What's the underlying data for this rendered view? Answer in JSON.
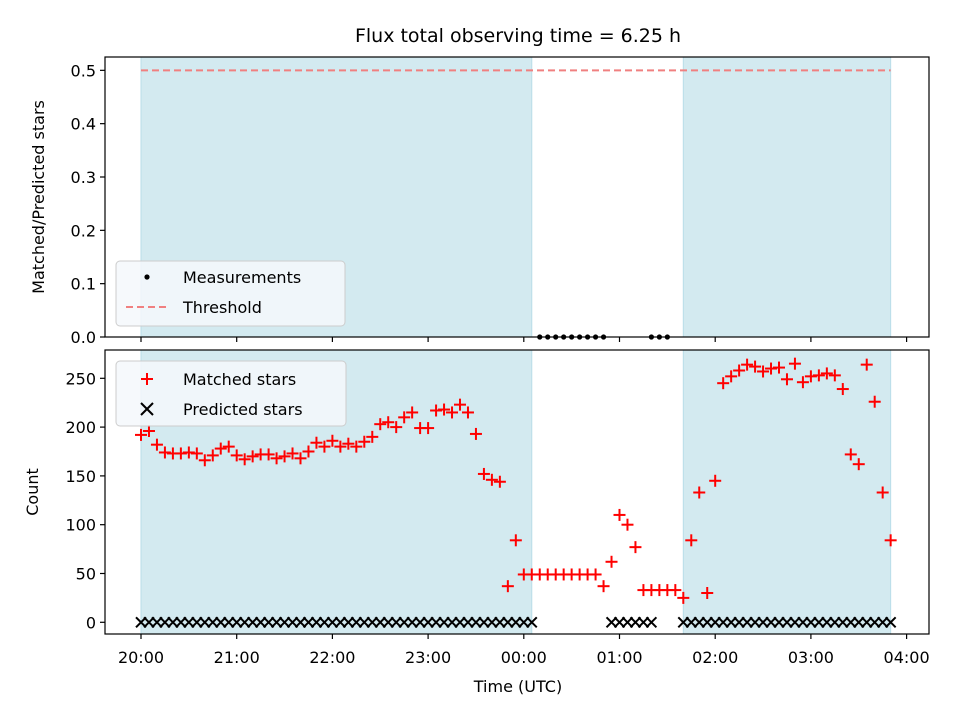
{
  "chart_data": [
    {
      "type": "scatter",
      "title": "Flux total observing time = 6.25 h",
      "ylabel": "Matched/Predicted stars",
      "ylim": [
        0,
        0.525
      ],
      "yticks": [
        "0.0",
        "0.1",
        "0.2",
        "0.3",
        "0.4",
        "0.5"
      ],
      "threshold": 0.5,
      "shaded_intervals": [
        [
          "20:00",
          "00:05"
        ],
        [
          "01:40",
          "03:50"
        ]
      ],
      "legend": [
        "Measurements",
        "Threshold"
      ],
      "legend_position": "lower-left",
      "series": [
        {
          "name": "Measurements",
          "x": [
            "00:10",
            "00:15",
            "00:20",
            "00:25",
            "00:30",
            "00:35",
            "00:40",
            "00:45",
            "00:50",
            "01:20",
            "01:25",
            "01:30"
          ],
          "y": [
            0,
            0,
            0,
            0,
            0,
            0,
            0,
            0,
            0,
            0,
            0,
            0
          ]
        }
      ]
    },
    {
      "type": "scatter",
      "xlabel": "Time (UTC)",
      "ylabel": "Count",
      "ylim": [
        -12,
        279
      ],
      "yticks": [
        "0",
        "50",
        "100",
        "150",
        "200",
        "250"
      ],
      "xticks": [
        "20:00",
        "21:00",
        "22:00",
        "23:00",
        "00:00",
        "01:00",
        "02:00",
        "03:00",
        "04:00"
      ],
      "shaded_intervals": [
        [
          "20:00",
          "00:05"
        ],
        [
          "01:40",
          "03:50"
        ]
      ],
      "legend": [
        "Matched stars",
        "Predicted stars"
      ],
      "legend_position": "top-left",
      "series": [
        {
          "name": "Matched stars",
          "points": [
            [
              "20:00",
              192
            ],
            [
              "20:05",
              196
            ],
            [
              "20:10",
              182
            ],
            [
              "20:15",
              174
            ],
            [
              "20:20",
              173
            ],
            [
              "20:25",
              173
            ],
            [
              "20:30",
              174
            ],
            [
              "20:35",
              173
            ],
            [
              "20:40",
              166
            ],
            [
              "20:45",
              171
            ],
            [
              "20:50",
              178
            ],
            [
              "20:55",
              180
            ],
            [
              "21:00",
              171
            ],
            [
              "21:05",
              167
            ],
            [
              "21:10",
              170
            ],
            [
              "21:15",
              172
            ],
            [
              "21:20",
              172
            ],
            [
              "21:25",
              168
            ],
            [
              "21:30",
              170
            ],
            [
              "21:35",
              173
            ],
            [
              "21:40",
              168
            ],
            [
              "21:45",
              175
            ],
            [
              "21:50",
              184
            ],
            [
              "21:55",
              180
            ],
            [
              "22:00",
              186
            ],
            [
              "22:05",
              180
            ],
            [
              "22:10",
              183
            ],
            [
              "22:15",
              180
            ],
            [
              "22:20",
              185
            ],
            [
              "22:25",
              190
            ],
            [
              "22:30",
              203
            ],
            [
              "22:35",
              205
            ],
            [
              "22:40",
              200
            ],
            [
              "22:45",
              210
            ],
            [
              "22:50",
              215
            ],
            [
              "22:55",
              199
            ],
            [
              "23:00",
              199
            ],
            [
              "23:05",
              217
            ],
            [
              "23:10",
              218
            ],
            [
              "23:15",
              215
            ],
            [
              "23:20",
              223
            ],
            [
              "23:25",
              215
            ],
            [
              "23:30",
              193
            ],
            [
              "23:35",
              152
            ],
            [
              "23:40",
              146
            ],
            [
              "23:45",
              144
            ],
            [
              "23:50",
              37
            ],
            [
              "23:55",
              84
            ],
            [
              "00:00",
              49
            ],
            [
              "00:05",
              49
            ],
            [
              "00:10",
              49
            ],
            [
              "00:15",
              49
            ],
            [
              "00:20",
              49
            ],
            [
              "00:25",
              49
            ],
            [
              "00:30",
              49
            ],
            [
              "00:35",
              49
            ],
            [
              "00:40",
              49
            ],
            [
              "00:45",
              49
            ],
            [
              "00:50",
              37
            ],
            [
              "00:55",
              62
            ],
            [
              "01:00",
              110
            ],
            [
              "01:05",
              100
            ],
            [
              "01:10",
              77
            ],
            [
              "01:15",
              33
            ],
            [
              "01:20",
              33
            ],
            [
              "01:25",
              33
            ],
            [
              "01:30",
              33
            ],
            [
              "01:35",
              33
            ],
            [
              "01:40",
              25
            ],
            [
              "01:45",
              84
            ],
            [
              "01:50",
              133
            ],
            [
              "01:55",
              30
            ],
            [
              "02:00",
              145
            ],
            [
              "02:05",
              245
            ],
            [
              "02:10",
              252
            ],
            [
              "02:15",
              258
            ],
            [
              "02:20",
              264
            ],
            [
              "02:25",
              262
            ],
            [
              "02:30",
              257
            ],
            [
              "02:35",
              260
            ],
            [
              "02:40",
              261
            ],
            [
              "02:45",
              249
            ],
            [
              "02:50",
              265
            ],
            [
              "02:55",
              246
            ],
            [
              "03:00",
              252
            ],
            [
              "03:05",
              253
            ],
            [
              "03:10",
              255
            ],
            [
              "03:15",
              253
            ],
            [
              "03:20",
              239
            ],
            [
              "03:25",
              172
            ],
            [
              "03:30",
              162
            ],
            [
              "03:35",
              264
            ],
            [
              "03:40",
              226
            ],
            [
              "03:45",
              133
            ],
            [
              "03:50",
              84
            ]
          ]
        },
        {
          "name": "Predicted stars",
          "points": [
            [
              "20:00",
              0
            ],
            [
              "20:05",
              0
            ],
            [
              "20:10",
              0
            ],
            [
              "20:15",
              0
            ],
            [
              "20:20",
              0
            ],
            [
              "20:25",
              0
            ],
            [
              "20:30",
              0
            ],
            [
              "20:35",
              0
            ],
            [
              "20:40",
              0
            ],
            [
              "20:45",
              0
            ],
            [
              "20:50",
              0
            ],
            [
              "20:55",
              0
            ],
            [
              "21:00",
              0
            ],
            [
              "21:05",
              0
            ],
            [
              "21:10",
              0
            ],
            [
              "21:15",
              0
            ],
            [
              "21:20",
              0
            ],
            [
              "21:25",
              0
            ],
            [
              "21:30",
              0
            ],
            [
              "21:35",
              0
            ],
            [
              "21:40",
              0
            ],
            [
              "21:45",
              0
            ],
            [
              "21:50",
              0
            ],
            [
              "21:55",
              0
            ],
            [
              "22:00",
              0
            ],
            [
              "22:05",
              0
            ],
            [
              "22:10",
              0
            ],
            [
              "22:15",
              0
            ],
            [
              "22:20",
              0
            ],
            [
              "22:25",
              0
            ],
            [
              "22:30",
              0
            ],
            [
              "22:35",
              0
            ],
            [
              "22:40",
              0
            ],
            [
              "22:45",
              0
            ],
            [
              "22:50",
              0
            ],
            [
              "22:55",
              0
            ],
            [
              "23:00",
              0
            ],
            [
              "23:05",
              0
            ],
            [
              "23:10",
              0
            ],
            [
              "23:15",
              0
            ],
            [
              "23:20",
              0
            ],
            [
              "23:25",
              0
            ],
            [
              "23:30",
              0
            ],
            [
              "23:35",
              0
            ],
            [
              "23:40",
              0
            ],
            [
              "23:45",
              0
            ],
            [
              "23:50",
              0
            ],
            [
              "23:55",
              0
            ],
            [
              "00:00",
              0
            ],
            [
              "00:05",
              0
            ],
            [
              "00:55",
              0
            ],
            [
              "01:00",
              0
            ],
            [
              "01:05",
              0
            ],
            [
              "01:10",
              0
            ],
            [
              "01:15",
              0
            ],
            [
              "01:20",
              0
            ],
            [
              "01:40",
              0
            ],
            [
              "01:45",
              0
            ],
            [
              "01:50",
              0
            ],
            [
              "01:55",
              0
            ],
            [
              "02:00",
              0
            ],
            [
              "02:05",
              0
            ],
            [
              "02:10",
              0
            ],
            [
              "02:15",
              0
            ],
            [
              "02:20",
              0
            ],
            [
              "02:25",
              0
            ],
            [
              "02:30",
              0
            ],
            [
              "02:35",
              0
            ],
            [
              "02:40",
              0
            ],
            [
              "02:45",
              0
            ],
            [
              "02:50",
              0
            ],
            [
              "02:55",
              0
            ],
            [
              "03:00",
              0
            ],
            [
              "03:05",
              0
            ],
            [
              "03:10",
              0
            ],
            [
              "03:15",
              0
            ],
            [
              "03:20",
              0
            ],
            [
              "03:25",
              0
            ],
            [
              "03:30",
              0
            ],
            [
              "03:35",
              0
            ],
            [
              "03:40",
              0
            ],
            [
              "03:45",
              0
            ],
            [
              "03:50",
              0
            ]
          ]
        }
      ]
    }
  ],
  "colors": {
    "shade": "#d3eaf0",
    "shade_edge": "#b9dde8",
    "matched": "#ff0000",
    "predicted": "#000000",
    "measurement": "#000000",
    "threshold": "#f08080",
    "legend_bg": "#f5f8fb"
  }
}
